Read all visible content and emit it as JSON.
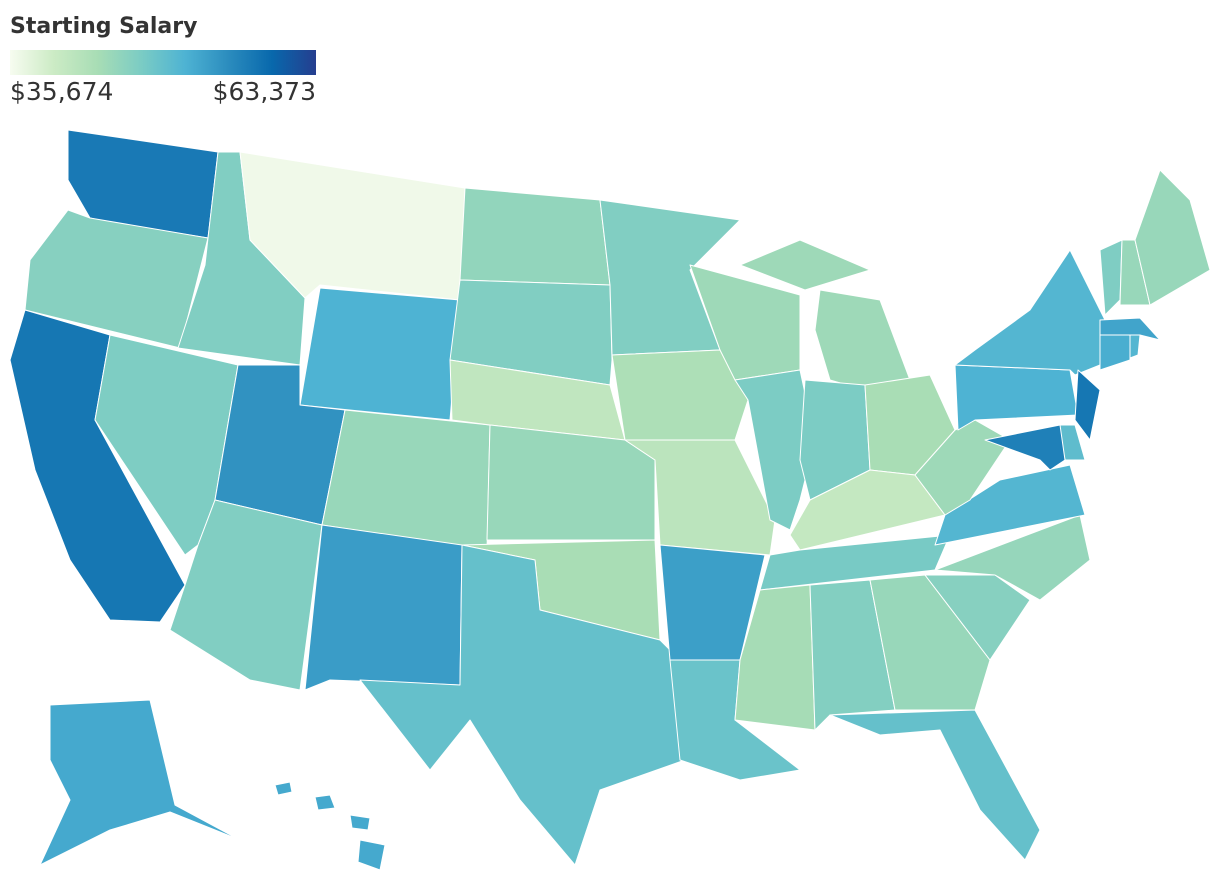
{
  "chart_data": {
    "type": "choropleth",
    "title": "Starting Salary",
    "colorbar": {
      "min": {
        "value": 35674,
        "label": "$35,674"
      },
      "max": {
        "value": 63373,
        "label": "$63,373"
      }
    },
    "colors": [
      "#f7fcf0",
      "#ccebc5",
      "#a8ddb5",
      "#7bccc4",
      "#4eb3d3",
      "#2b8cbe",
      "#0868ac",
      "#253e8f"
    ],
    "values": [
      57500,
      46500,
      57800,
      47300,
      47000,
      36300,
      51500,
      54800,
      47000,
      45000,
      53800,
      45500,
      47000,
      41000,
      45000,
      43500,
      49500,
      47000,
      43000,
      41500,
      53500,
      49000,
      44500,
      47500,
      44500,
      47500,
      43500,
      40500,
      47800,
      43800,
      46800,
      45000,
      49500,
      46500,
      45200,
      51000,
      44500,
      51500,
      51000,
      57800,
      50000,
      56800,
      52000,
      51000,
      53000,
      47200,
      45000,
      45000,
      52500,
      52500
    ]
  }
}
